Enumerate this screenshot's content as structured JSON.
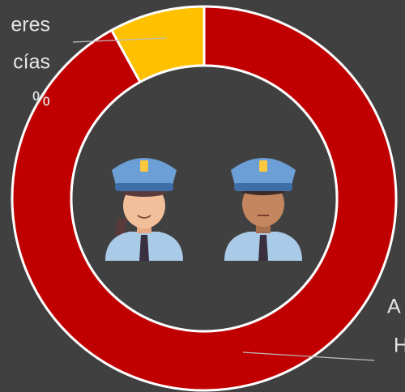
{
  "chart_data": {
    "type": "donut",
    "values": [
      92,
      8
    ],
    "colors": [
      "#c00000",
      "#ffc000"
    ],
    "labels": [
      [
        "A",
        "H"
      ],
      [
        "eres",
        "cías",
        "%"
      ]
    ]
  }
}
